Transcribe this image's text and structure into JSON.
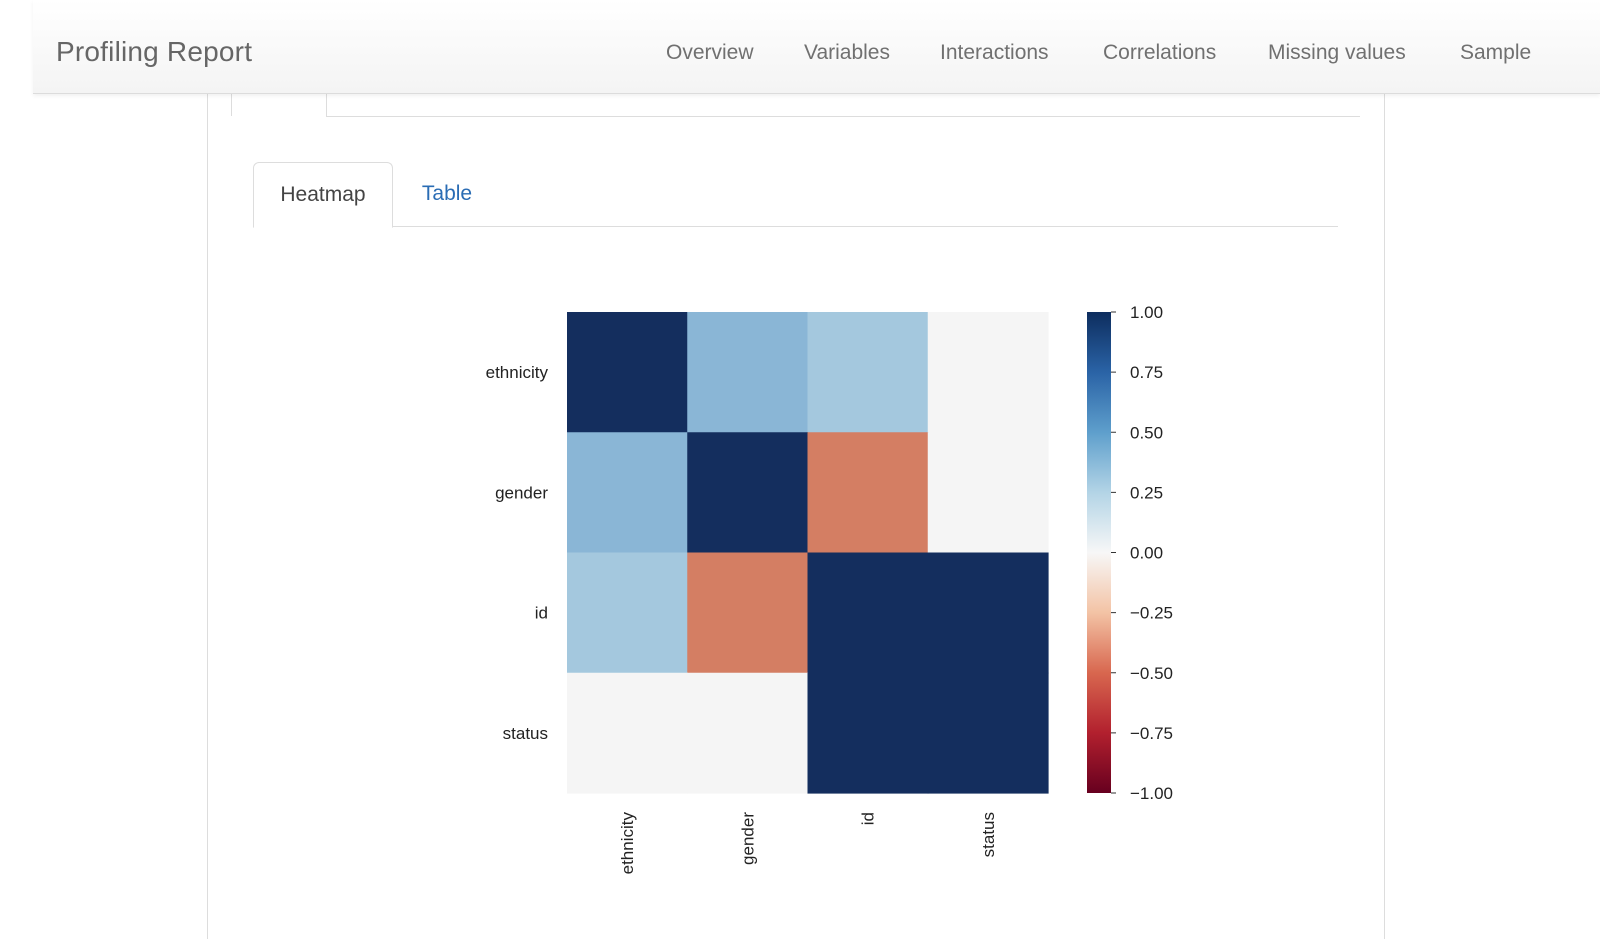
{
  "navbar": {
    "brand": "Profiling Report",
    "items": [
      "Overview",
      "Variables",
      "Interactions",
      "Correlations",
      "Missing values",
      "Sample"
    ]
  },
  "tabs": {
    "heatmap_label": "Heatmap",
    "table_label": "Table"
  },
  "colors": {
    "link": "#2a6cb4",
    "colormap": "RdBu"
  },
  "chart_data": {
    "type": "heatmap",
    "rows": [
      "ethnicity",
      "gender",
      "id",
      "status"
    ],
    "columns": [
      "ethnicity",
      "gender",
      "id",
      "status"
    ],
    "values": [
      [
        1.0,
        0.45,
        0.35,
        0.0
      ],
      [
        0.45,
        1.0,
        -0.45,
        0.0
      ],
      [
        0.35,
        -0.45,
        1.0,
        1.0
      ],
      [
        0.0,
        0.0,
        1.0,
        1.0
      ]
    ],
    "colorbar": {
      "min": -1.0,
      "max": 1.0,
      "ticks": [
        "1.00",
        "0.75",
        "0.50",
        "0.25",
        "0.00",
        "−0.25",
        "−0.50",
        "−0.75",
        "−1.00"
      ]
    }
  }
}
